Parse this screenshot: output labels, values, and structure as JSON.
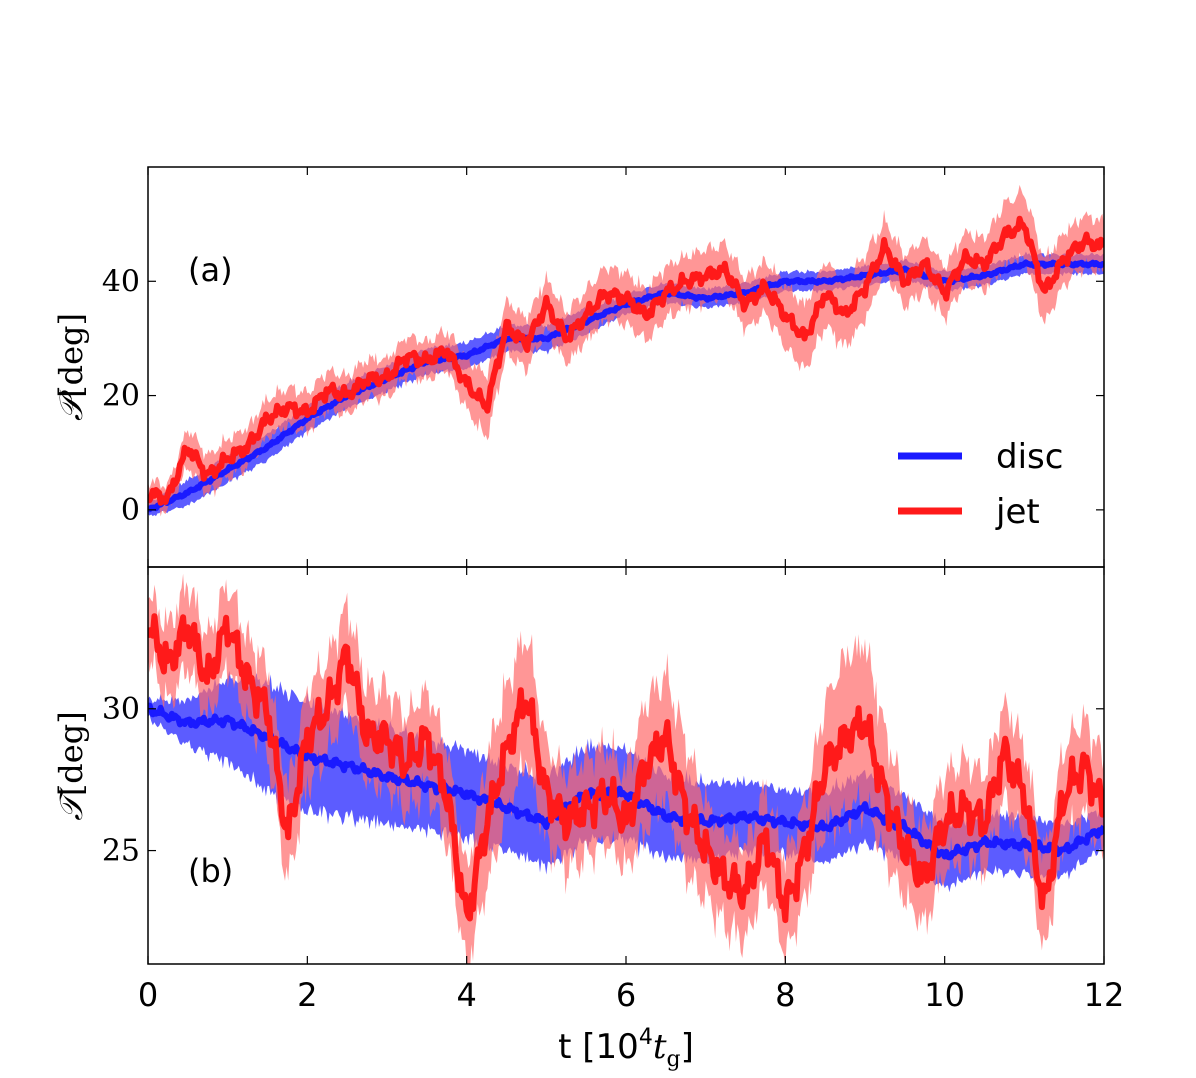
{
  "figure": {
    "xlabel": "t [10⁴t_g]",
    "xlabel_parts": {
      "prefix": "t [10",
      "exponent": "4",
      "symbol": "t",
      "subscript": "g",
      "suffix": "]"
    }
  },
  "legend": {
    "entries": [
      {
        "label": "disc",
        "color": "#1a1aff"
      },
      {
        "label": "jet",
        "color": "#ff1a1a"
      }
    ]
  },
  "chart_data": [
    {
      "type": "line",
      "panel_label": "(a)",
      "ylabel": "𝒫 [deg]",
      "ylabel_parts": {
        "symbol": "𝒫",
        "unit": "[deg]"
      },
      "xlabel": "t [10⁴t_g]",
      "xlim": [
        0,
        12
      ],
      "ylim": [
        -10,
        60
      ],
      "xticks": [
        0,
        2,
        4,
        6,
        8,
        10,
        12
      ],
      "yticks": [
        0,
        20,
        40
      ],
      "grid": false,
      "legend_position": "lower-right",
      "series": [
        {
          "name": "disc",
          "color": "#1a1aff",
          "band_color": "#4040ff",
          "x": [
            0,
            0.5,
            1,
            1.5,
            2,
            2.5,
            3,
            3.5,
            4,
            4.5,
            5,
            5.5,
            6,
            6.5,
            7,
            7.5,
            8,
            8.5,
            9,
            9.5,
            10,
            10.5,
            11,
            11.5,
            12
          ],
          "y": [
            0,
            3,
            7,
            11,
            16,
            20,
            23,
            26,
            27,
            30,
            30,
            33,
            36,
            38,
            37,
            38,
            40,
            40,
            41,
            42,
            40,
            41,
            43,
            43,
            43
          ],
          "band": [
            1,
            2,
            2,
            2,
            2,
            2,
            2,
            2,
            2,
            2,
            2,
            2,
            1.5,
            1.5,
            1.5,
            1.5,
            1.5,
            1.5,
            1.5,
            1.5,
            1.5,
            1.5,
            1.5,
            1.5,
            1.5
          ]
        },
        {
          "name": "jet",
          "color": "#ff1a1a",
          "band_color": "#ff6a6a",
          "x": [
            0,
            0.25,
            0.5,
            0.75,
            1,
            1.25,
            1.5,
            1.75,
            2,
            2.25,
            2.5,
            2.75,
            3,
            3.25,
            3.5,
            3.75,
            4,
            4.25,
            4.5,
            4.75,
            5,
            5.25,
            5.5,
            5.75,
            6,
            6.25,
            6.5,
            6.75,
            7,
            7.25,
            7.5,
            7.75,
            8,
            8.25,
            8.5,
            8.75,
            9,
            9.25,
            9.5,
            9.75,
            10,
            10.25,
            10.5,
            10.75,
            11,
            11.25,
            11.5,
            11.75,
            12
          ],
          "y": [
            3,
            2,
            11,
            6,
            9,
            11,
            16,
            18,
            17,
            21,
            20,
            23,
            23,
            27,
            26,
            28,
            22,
            18,
            32,
            29,
            36,
            30,
            34,
            38,
            37,
            34,
            38,
            40,
            41,
            42,
            36,
            39,
            34,
            30,
            38,
            34,
            39,
            46,
            40,
            43,
            38,
            44,
            43,
            48,
            50,
            38,
            44,
            47,
            46
          ],
          "band": [
            2,
            2,
            3,
            3,
            3,
            3,
            3,
            3,
            3,
            3,
            3,
            3,
            3,
            3,
            3,
            3,
            4,
            5,
            4,
            4,
            4,
            4,
            4,
            4,
            4,
            4,
            4,
            4,
            4,
            4,
            4,
            4,
            5,
            5,
            5,
            5,
            5,
            4,
            4,
            4,
            4,
            4,
            4,
            5,
            5,
            5,
            4,
            4,
            4
          ]
        }
      ]
    },
    {
      "type": "line",
      "panel_label": "(b)",
      "ylabel": "𝒯 [deg]",
      "ylabel_parts": {
        "symbol": "𝒯",
        "unit": "[deg]"
      },
      "xlabel": "t [10⁴t_g]",
      "xlim": [
        0,
        12
      ],
      "ylim": [
        21,
        35
      ],
      "xticks": [
        0,
        2,
        4,
        6,
        8,
        10,
        12
      ],
      "xticklabels": [
        "0",
        "2",
        "4",
        "6",
        "8",
        "10",
        "12"
      ],
      "yticks": [
        25,
        30
      ],
      "grid": false,
      "series": [
        {
          "name": "disc",
          "color": "#1a1aff",
          "band_color": "#4040ff",
          "x": [
            0,
            0.5,
            1,
            1.5,
            2,
            2.5,
            3,
            3.5,
            4,
            4.5,
            5,
            5.5,
            6,
            6.5,
            7,
            7.5,
            8,
            8.5,
            9,
            9.5,
            10,
            10.5,
            11,
            11.5,
            12
          ],
          "y": [
            30,
            29.5,
            29.6,
            29,
            28.3,
            28,
            27.6,
            27.3,
            27,
            26.5,
            26,
            27,
            27,
            26.2,
            26,
            26.2,
            26,
            25.8,
            26.5,
            25.8,
            24.8,
            25.3,
            25.2,
            25,
            25.8
          ],
          "band": [
            0.3,
            0.7,
            1.3,
            1.7,
            1.7,
            1.6,
            1.5,
            1.4,
            1.4,
            1.3,
            1.4,
            1.5,
            1.4,
            1.3,
            1.2,
            1.1,
            1.0,
            1.1,
            1.1,
            1.0,
            1.0,
            0.9,
            0.9,
            0.8,
            0.6
          ]
        },
        {
          "name": "jet",
          "color": "#ff1a1a",
          "band_color": "#ff6a6a",
          "x": [
            0,
            0.25,
            0.5,
            0.75,
            1,
            1.25,
            1.5,
            1.75,
            2,
            2.25,
            2.5,
            2.75,
            3,
            3.25,
            3.5,
            3.75,
            4,
            4.25,
            4.5,
            4.75,
            5,
            5.25,
            5.5,
            5.75,
            6,
            6.25,
            6.5,
            6.75,
            7,
            7.25,
            7.5,
            7.75,
            8,
            8.25,
            8.5,
            8.75,
            9,
            9.25,
            9.5,
            9.75,
            10,
            10.25,
            10.5,
            10.75,
            11,
            11.25,
            11.5,
            11.75,
            12
          ],
          "y": [
            33,
            31.5,
            33,
            31,
            33,
            31,
            30,
            25.5,
            29,
            30,
            32,
            29,
            29,
            28,
            29,
            27,
            22.5,
            26,
            28.5,
            30.5,
            27,
            26,
            26.5,
            27,
            26,
            28,
            29,
            26.5,
            25,
            24,
            23.5,
            25.5,
            23,
            25,
            28,
            29,
            29.5,
            27,
            25,
            24,
            26,
            26.5,
            26,
            28.5,
            27,
            23,
            27,
            28,
            26.5
          ],
          "band": [
            1,
            1.2,
            1.3,
            1.3,
            1.3,
            1.3,
            1.3,
            1.5,
            1.5,
            1.5,
            1.5,
            1.5,
            1.5,
            1.5,
            1.5,
            1.5,
            1.5,
            2,
            2,
            2,
            1.5,
            1.5,
            1.5,
            1.5,
            1.5,
            2,
            2,
            2,
            1.5,
            1.5,
            1.5,
            1.5,
            1.5,
            1.5,
            2,
            2.5,
            2.5,
            2,
            1.5,
            1.5,
            1.5,
            1.5,
            1.5,
            1.5,
            1.5,
            1.5,
            1.5,
            1.5,
            1.5
          ]
        }
      ]
    }
  ]
}
